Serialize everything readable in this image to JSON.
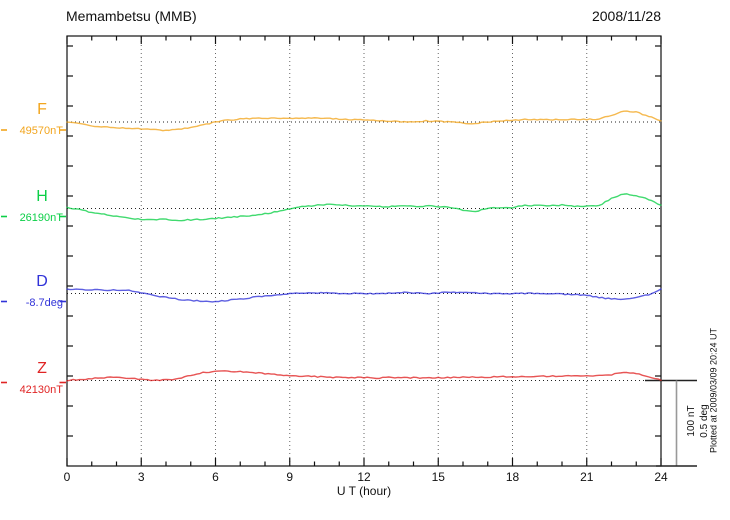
{
  "header": {
    "title": "Memambetsu (MMB)",
    "date": "2008/11/28"
  },
  "chart_data": {
    "type": "line",
    "station": "Memambetsu (MMB)",
    "date": "2008/11/28",
    "xlabel": "U T (hour)",
    "x_unit": "hour",
    "x_range": [
      0,
      24
    ],
    "x_major_ticks": [
      0,
      3,
      6,
      9,
      12,
      15,
      18,
      21,
      24
    ],
    "x_minor_tick_interval_hours": 1,
    "sample_interval_hours": 0.5,
    "grid": "dotted vertical line every 3 hours; dotted horizontal baseline per component",
    "series": [
      {
        "id": "F",
        "label": "F",
        "baseline_label": "49570nT",
        "baseline_value": 49570,
        "unit": "nT",
        "color": "#f2a51e",
        "deviations": [
          0,
          -2.3,
          -4.6,
          -5.8,
          -6.9,
          -7.5,
          -8.1,
          -9.2,
          -9.8,
          -8.6,
          -6.9,
          -3.5,
          0,
          2.3,
          3.5,
          4,
          4.6,
          4.6,
          4.6,
          4.6,
          4.6,
          4,
          3.5,
          2.9,
          2.3,
          1.7,
          1.2,
          0,
          0.6,
          1.2,
          0.6,
          0,
          -1.2,
          -1.7,
          0,
          1.2,
          2.3,
          2.9,
          2.9,
          2.9,
          2.9,
          2.9,
          2.9,
          3.5,
          8.1,
          12.7,
          11.5,
          6.9,
          1.2
        ]
      },
      {
        "id": "H",
        "label": "H",
        "baseline_label": "26190nT",
        "baseline_value": 26190,
        "unit": "nT",
        "color": "#0ccf47",
        "deviations": [
          1.2,
          -1.2,
          -4.6,
          -6.9,
          -9.2,
          -11.5,
          -12.7,
          -13.2,
          -12.7,
          -13.8,
          -13.2,
          -12.7,
          -11.5,
          -10.4,
          -9.2,
          -8.1,
          -6.3,
          -3.5,
          0,
          2.3,
          3.5,
          4.6,
          4,
          3.5,
          3.5,
          2.3,
          2.3,
          2.9,
          2.3,
          2.9,
          2.3,
          1.2,
          -2.3,
          -3.5,
          0,
          1.2,
          1.2,
          3.5,
          3.5,
          3.5,
          4,
          2.3,
          2.9,
          3.5,
          11.5,
          17.3,
          15,
          10.4,
          3.5
        ]
      },
      {
        "id": "D",
        "label": "D",
        "baseline_label": "-8.7deg",
        "baseline_value": -8.7,
        "unit": "deg",
        "color": "#3032d8",
        "deviations": [
          0.023,
          0.023,
          0.023,
          0.02,
          0.02,
          0.017,
          0.006,
          -0.011,
          -0.023,
          -0.034,
          -0.04,
          -0.046,
          -0.046,
          -0.04,
          -0.032,
          -0.023,
          -0.014,
          -0.006,
          0,
          0,
          0.003,
          0.003,
          0,
          0,
          0,
          0,
          0.003,
          0.006,
          0.003,
          0,
          0.003,
          0.009,
          0.006,
          0.003,
          0,
          0,
          0,
          0,
          0,
          -0.003,
          -0.003,
          -0.006,
          -0.011,
          -0.023,
          -0.032,
          -0.034,
          -0.023,
          -0.006,
          0.023
        ]
      },
      {
        "id": "Z",
        "label": "Z",
        "baseline_label": "42130nT",
        "baseline_value": 42130,
        "unit": "nT",
        "color": "#e02424",
        "deviations": [
          0,
          1.2,
          2.3,
          3.5,
          3.5,
          2.9,
          1.2,
          0,
          0.6,
          2.3,
          5.8,
          9.2,
          10.4,
          10.9,
          10.4,
          9.2,
          8.1,
          6.9,
          5.8,
          5.2,
          4.6,
          4,
          3.5,
          3.5,
          3.5,
          2.9,
          3.5,
          2.9,
          3.5,
          2.9,
          3.5,
          3.5,
          4,
          4,
          4,
          4.6,
          4.6,
          4.6,
          4.6,
          5.2,
          5.2,
          5.2,
          5.2,
          5.8,
          6.9,
          9.2,
          8.1,
          4.6,
          0.6
        ]
      }
    ],
    "scale_bar": {
      "nt_label": "100 nT",
      "deg_label": "0.5 deg",
      "nt_value": 100,
      "deg_value": 0.5
    },
    "plotted_note": "Plotted at 2009/03/09 20:24 UT"
  }
}
